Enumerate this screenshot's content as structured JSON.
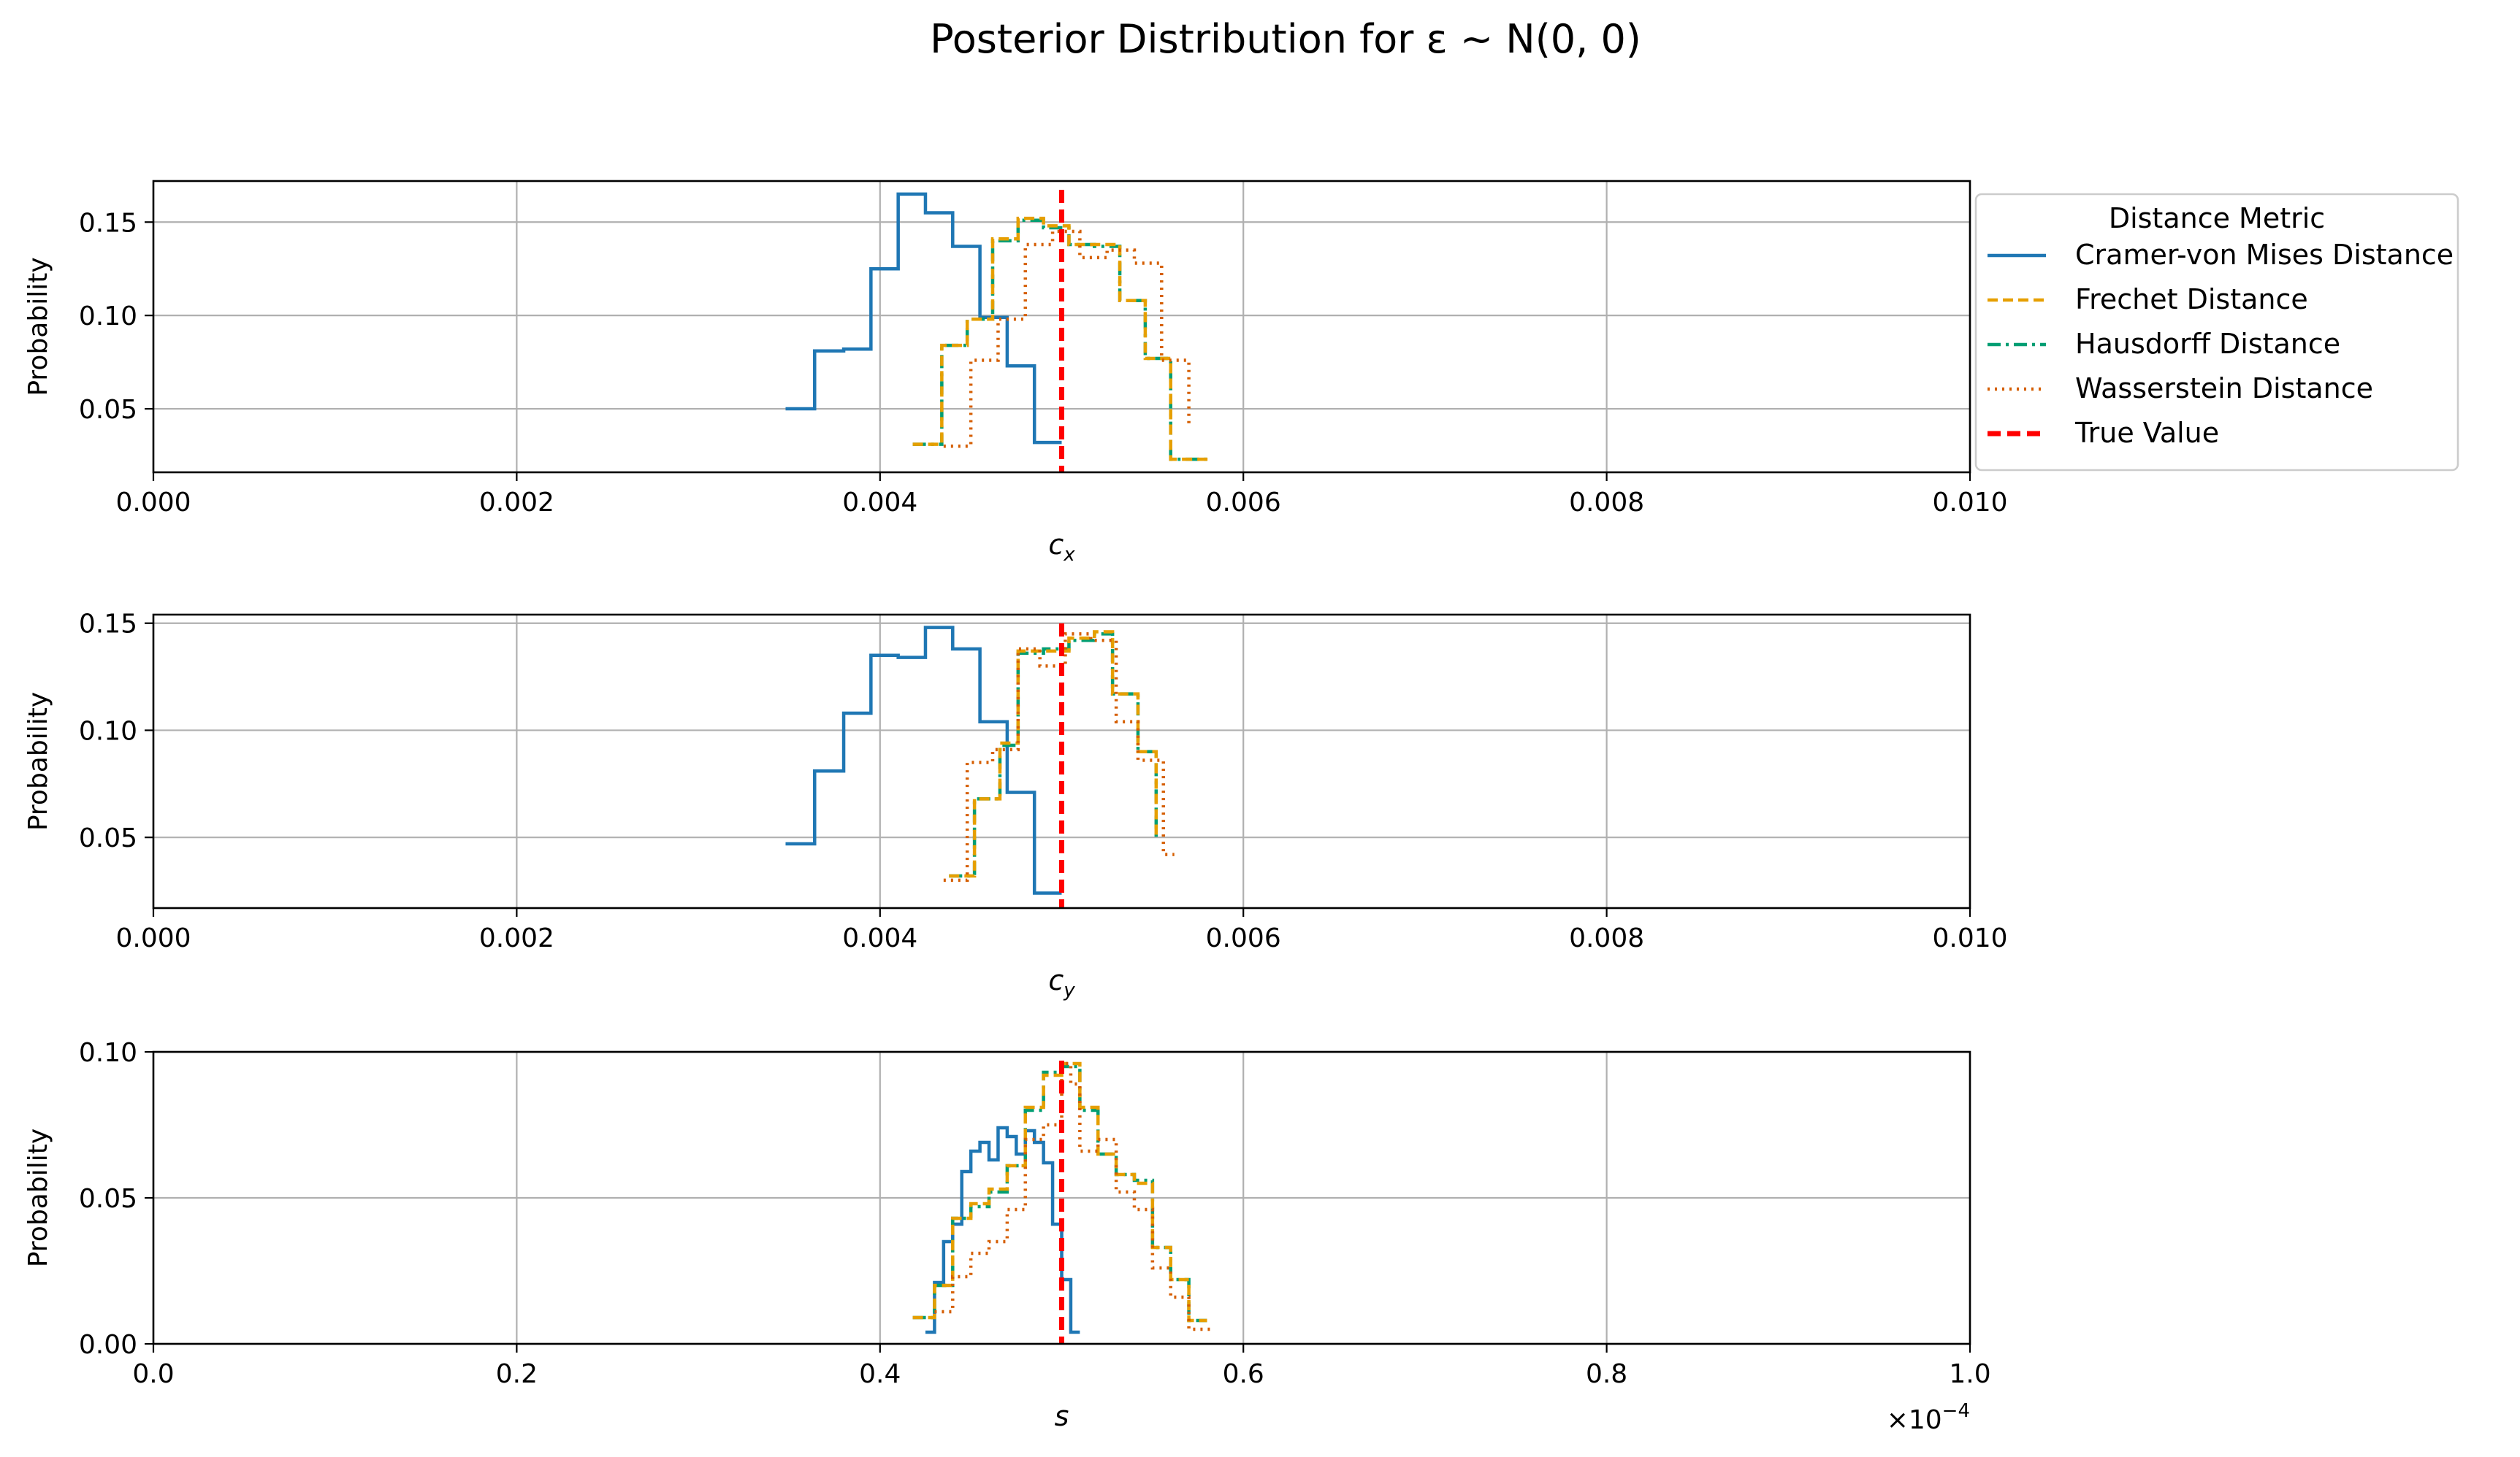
{
  "title": "Posterior Distribution for ε ∼ N(0, 0)",
  "colors": {
    "cvm": "#1f77b4",
    "frechet": "#e69f00",
    "hausdorff": "#009e73",
    "wasserstein": "#d55e00",
    "true_value": "#ff0000"
  },
  "legend": {
    "title": "Distance Metric",
    "placement": "outside-top-right",
    "entries": [
      {
        "key": "cvm",
        "label": "Cramer-von Mises Distance",
        "style": "solid"
      },
      {
        "key": "frechet",
        "label": "Frechet Distance",
        "style": "dashed"
      },
      {
        "key": "hausdorff",
        "label": "Hausdorff Distance",
        "style": "dashdot"
      },
      {
        "key": "wasserstein",
        "label": "Wasserstein Distance",
        "style": "dotted"
      },
      {
        "key": "true_value",
        "label": "True Value",
        "style": "dashed-thick"
      }
    ]
  },
  "chart_data": [
    {
      "type": "line",
      "subtype": "step-histogram",
      "xlabel": "c",
      "xlabel_sub": "x",
      "ylabel": "Probability",
      "xlim": [
        0,
        0.01
      ],
      "ylim": [
        0.016,
        0.172
      ],
      "xticks": [
        0,
        0.002,
        0.004,
        0.006,
        0.008,
        0.01
      ],
      "xtick_labels": [
        "0.000",
        "0.002",
        "0.004",
        "0.006",
        "0.008",
        "0.010"
      ],
      "yticks": [
        0.05,
        0.1,
        0.15
      ],
      "ytick_labels": [
        "0.05",
        "0.10",
        "0.15"
      ],
      "grid": true,
      "true_value": 0.005,
      "series": [
        {
          "key": "cvm",
          "edges": [
            0.00348,
            0.00364,
            0.0038,
            0.00395,
            0.0041,
            0.00425,
            0.0044,
            0.00455,
            0.0047,
            0.00485,
            0.005
          ],
          "values": [
            0.05,
            0.081,
            0.082,
            0.125,
            0.165,
            0.155,
            0.137,
            0.099,
            0.073,
            0.032
          ]
        },
        {
          "key": "hausdorff",
          "edges": [
            0.00418,
            0.00434,
            0.00448,
            0.00462,
            0.00476,
            0.0049,
            0.00504,
            0.00518,
            0.00532,
            0.00546,
            0.0056,
            0.00574,
            0.00582
          ],
          "values": [
            0.031,
            0.084,
            0.098,
            0.14,
            0.151,
            0.147,
            0.138,
            0.137,
            0.108,
            0.077,
            0.023,
            0.023
          ]
        },
        {
          "key": "frechet",
          "edges": [
            0.00418,
            0.00434,
            0.00448,
            0.00462,
            0.00476,
            0.0049,
            0.00504,
            0.00518,
            0.00532,
            0.00546,
            0.0056,
            0.00574,
            0.00582
          ],
          "values": [
            0.031,
            0.084,
            0.098,
            0.141,
            0.152,
            0.148,
            0.138,
            0.138,
            0.108,
            0.077,
            0.023,
            0.023
          ]
        },
        {
          "key": "wasserstein",
          "edges": [
            0.00435,
            0.0045,
            0.00465,
            0.0048,
            0.00495,
            0.0051,
            0.00525,
            0.0054,
            0.00555,
            0.0057
          ],
          "values": [
            0.03,
            0.076,
            0.098,
            0.138,
            0.145,
            0.131,
            0.135,
            0.128,
            0.076,
            0.042
          ]
        }
      ]
    },
    {
      "type": "line",
      "subtype": "step-histogram",
      "xlabel": "c",
      "xlabel_sub": "y",
      "ylabel": "Probability",
      "xlim": [
        0,
        0.01
      ],
      "ylim": [
        0.017,
        0.154
      ],
      "xticks": [
        0,
        0.002,
        0.004,
        0.006,
        0.008,
        0.01
      ],
      "xtick_labels": [
        "0.000",
        "0.002",
        "0.004",
        "0.006",
        "0.008",
        "0.010"
      ],
      "yticks": [
        0.05,
        0.1,
        0.15
      ],
      "ytick_labels": [
        "0.05",
        "0.10",
        "0.15"
      ],
      "grid": true,
      "true_value": 0.005,
      "series": [
        {
          "key": "cvm",
          "edges": [
            0.00348,
            0.00364,
            0.0038,
            0.00395,
            0.0041,
            0.00425,
            0.0044,
            0.00455,
            0.0047,
            0.00485,
            0.005
          ],
          "values": [
            0.047,
            0.081,
            0.108,
            0.135,
            0.134,
            0.148,
            0.138,
            0.104,
            0.071,
            0.024
          ]
        },
        {
          "key": "hausdorff",
          "edges": [
            0.00438,
            0.00452,
            0.00466,
            0.00476,
            0.0049,
            0.00504,
            0.00518,
            0.00528,
            0.00542,
            0.00552
          ],
          "values": [
            0.032,
            0.068,
            0.093,
            0.136,
            0.138,
            0.142,
            0.145,
            0.117,
            0.09,
            0.048
          ]
        },
        {
          "key": "frechet",
          "edges": [
            0.00438,
            0.00452,
            0.00466,
            0.00476,
            0.0049,
            0.00504,
            0.00518,
            0.00528,
            0.00542,
            0.00552
          ],
          "values": [
            0.032,
            0.068,
            0.094,
            0.137,
            0.137,
            0.143,
            0.146,
            0.117,
            0.09,
            0.049
          ]
        },
        {
          "key": "wasserstein",
          "edges": [
            0.00435,
            0.00448,
            0.00462,
            0.00476,
            0.00488,
            0.00502,
            0.00516,
            0.0053,
            0.00542,
            0.00556,
            0.00562
          ],
          "values": [
            0.03,
            0.085,
            0.091,
            0.138,
            0.13,
            0.145,
            0.142,
            0.104,
            0.086,
            0.042
          ]
        }
      ]
    },
    {
      "type": "line",
      "subtype": "step-histogram",
      "xlabel": "s",
      "xlabel_sub": "",
      "ylabel": "Probability",
      "xlim": [
        0,
        1.0
      ],
      "ylim": [
        0,
        0.1
      ],
      "x_multiplier_label": "×10",
      "x_multiplier_exponent": "−4",
      "xticks": [
        0,
        0.2,
        0.4,
        0.6,
        0.8,
        1.0
      ],
      "xtick_labels": [
        "0.0",
        "0.2",
        "0.4",
        "0.6",
        "0.8",
        "1.0"
      ],
      "yticks": [
        0,
        0.05,
        0.1
      ],
      "ytick_labels": [
        "0.00",
        "0.05",
        "0.10"
      ],
      "grid": true,
      "true_value": 0.5,
      "series": [
        {
          "key": "cvm",
          "edges": [
            0.425,
            0.43,
            0.435,
            0.44,
            0.445,
            0.45,
            0.455,
            0.46,
            0.465,
            0.47,
            0.475,
            0.48,
            0.485,
            0.49,
            0.495,
            0.5,
            0.505,
            0.51
          ],
          "values": [
            0.004,
            0.021,
            0.035,
            0.041,
            0.059,
            0.066,
            0.069,
            0.063,
            0.074,
            0.071,
            0.065,
            0.073,
            0.069,
            0.062,
            0.041,
            0.022,
            0.004
          ]
        },
        {
          "key": "hausdorff",
          "edges": [
            0.418,
            0.43,
            0.44,
            0.45,
            0.46,
            0.47,
            0.48,
            0.49,
            0.5,
            0.51,
            0.52,
            0.53,
            0.54,
            0.55,
            0.56,
            0.57,
            0.58
          ],
          "values": [
            0.009,
            0.02,
            0.043,
            0.047,
            0.052,
            0.061,
            0.08,
            0.093,
            0.095,
            0.08,
            0.065,
            0.058,
            0.056,
            0.033,
            0.022,
            0.008
          ]
        },
        {
          "key": "frechet",
          "edges": [
            0.418,
            0.43,
            0.44,
            0.45,
            0.46,
            0.47,
            0.48,
            0.49,
            0.5,
            0.51,
            0.52,
            0.53,
            0.54,
            0.55,
            0.56,
            0.57,
            0.58
          ],
          "values": [
            0.009,
            0.02,
            0.043,
            0.048,
            0.053,
            0.061,
            0.081,
            0.092,
            0.096,
            0.081,
            0.065,
            0.058,
            0.055,
            0.033,
            0.022,
            0.008
          ]
        },
        {
          "key": "wasserstein",
          "edges": [
            0.43,
            0.44,
            0.45,
            0.46,
            0.47,
            0.48,
            0.49,
            0.5,
            0.505,
            0.51,
            0.52,
            0.53,
            0.54,
            0.55,
            0.56,
            0.57,
            0.582
          ],
          "values": [
            0.011,
            0.023,
            0.031,
            0.035,
            0.046,
            0.07,
            0.075,
            0.096,
            0.089,
            0.066,
            0.07,
            0.052,
            0.046,
            0.026,
            0.016,
            0.005
          ]
        }
      ]
    }
  ]
}
